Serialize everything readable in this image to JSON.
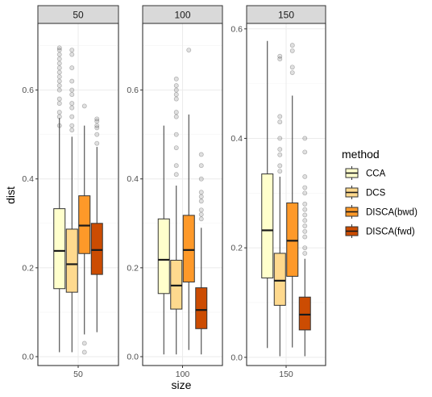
{
  "chart_data": {
    "type": "boxplot",
    "facet_variable": "size",
    "xlabel": "size",
    "ylabel": "dist",
    "legend": {
      "title": "method",
      "placement": "right",
      "entries": [
        "CCA",
        "DCS",
        "DISCA(bwd)",
        "DISCA(fwd)"
      ]
    },
    "colors": {
      "CCA": "#ffffcc",
      "DCS": "#fed98e",
      "DISCA(bwd)": "#fe9929",
      "DISCA(fwd)": "#cc4c02"
    },
    "grid": true,
    "panels": [
      {
        "strip": "50",
        "x_tick": "50",
        "ylim": [
          -0.02,
          0.75
        ],
        "y_ticks": [
          0.0,
          0.2,
          0.4,
          0.6
        ],
        "y_tick_labels": [
          "0.0",
          "0.2",
          "0.4",
          "0.6"
        ],
        "boxes": [
          {
            "method": "CCA",
            "min": 0.01,
            "q1": 0.153,
            "median": 0.238,
            "q3": 0.333,
            "max": 0.537,
            "outliers": [
              0.52,
              0.54,
              0.55,
              0.57,
              0.58,
              0.6,
              0.61,
              0.62,
              0.63,
              0.64,
              0.65,
              0.66,
              0.67,
              0.68,
              0.69,
              0.695
            ]
          },
          {
            "method": "DCS",
            "min": 0.01,
            "q1": 0.145,
            "median": 0.208,
            "q3": 0.287,
            "max": 0.495,
            "outliers": [
              0.51,
              0.52,
              0.54,
              0.56,
              0.57,
              0.59,
              0.6,
              0.62,
              0.65,
              0.68,
              0.69
            ]
          },
          {
            "method": "DISCA(bwd)",
            "min": 0.05,
            "q1": 0.232,
            "median": 0.295,
            "q3": 0.362,
            "max": 0.52,
            "outliers": [
              0.01,
              0.03,
              0.564
            ]
          },
          {
            "method": "DISCA(fwd)",
            "min": 0.055,
            "q1": 0.185,
            "median": 0.24,
            "q3": 0.3,
            "max": 0.472,
            "outliers": [
              0.48,
              0.5,
              0.515,
              0.52,
              0.53,
              0.535
            ]
          }
        ]
      },
      {
        "strip": "100",
        "x_tick": "100",
        "ylim": [
          -0.02,
          0.75
        ],
        "y_ticks": [
          0.0,
          0.2,
          0.4,
          0.6
        ],
        "y_tick_labels": [
          "0.0",
          "0.2",
          "0.4",
          "0.6"
        ],
        "boxes": [
          {
            "method": "CCA",
            "min": 0.005,
            "q1": 0.142,
            "median": 0.218,
            "q3": 0.31,
            "max": 0.52,
            "outliers": []
          },
          {
            "method": "DCS",
            "min": 0.005,
            "q1": 0.107,
            "median": 0.16,
            "q3": 0.217,
            "max": 0.385,
            "outliers": [
              0.41,
              0.43,
              0.47,
              0.5,
              0.54,
              0.55,
              0.58,
              0.59,
              0.6,
              0.61,
              0.625
            ]
          },
          {
            "method": "DISCA(bwd)",
            "min": 0.015,
            "q1": 0.168,
            "median": 0.24,
            "q3": 0.318,
            "max": 0.545,
            "outliers": [
              0.69
            ]
          },
          {
            "method": "DISCA(fwd)",
            "min": 0.005,
            "q1": 0.063,
            "median": 0.105,
            "q3": 0.155,
            "max": 0.29,
            "outliers": [
              0.31,
              0.32,
              0.33,
              0.35,
              0.36,
              0.37,
              0.4,
              0.43,
              0.455
            ]
          }
        ]
      },
      {
        "strip": "150",
        "x_tick": "150",
        "ylim": [
          -0.015,
          0.61
        ],
        "y_ticks": [
          0.0,
          0.2,
          0.4,
          0.6
        ],
        "y_tick_labels": [
          "0.0",
          "0.2",
          "0.4",
          "0.6"
        ],
        "boxes": [
          {
            "method": "CCA",
            "min": 0.017,
            "q1": 0.145,
            "median": 0.232,
            "q3": 0.335,
            "max": 0.578,
            "outliers": []
          },
          {
            "method": "DCS",
            "min": 0.002,
            "q1": 0.095,
            "median": 0.14,
            "q3": 0.19,
            "max": 0.33,
            "outliers": [
              0.34,
              0.35,
              0.37,
              0.38,
              0.4,
              0.43,
              0.44,
              0.545,
              0.55
            ]
          },
          {
            "method": "DISCA(bwd)",
            "min": 0.018,
            "q1": 0.148,
            "median": 0.213,
            "q3": 0.282,
            "max": 0.478,
            "outliers": [
              0.52,
              0.53,
              0.56,
              0.57
            ]
          },
          {
            "method": "DISCA(fwd)",
            "min": 0.002,
            "q1": 0.05,
            "median": 0.078,
            "q3": 0.11,
            "max": 0.18,
            "outliers": [
              0.19,
              0.2,
              0.22,
              0.23,
              0.24,
              0.25,
              0.26,
              0.27,
              0.28,
              0.3,
              0.31,
              0.33,
              0.375,
              0.4
            ]
          }
        ]
      }
    ]
  }
}
